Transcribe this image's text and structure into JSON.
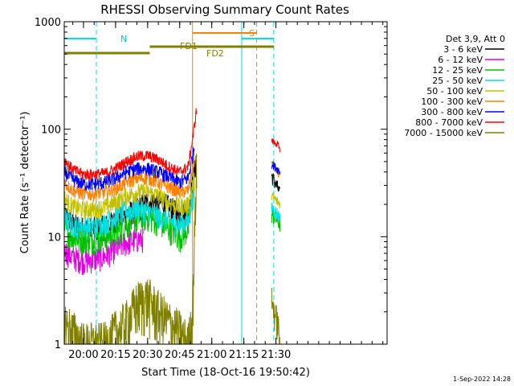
{
  "chart_data": {
    "type": "line",
    "title": "RHESSI Observing Summary Count Rates",
    "xlabel": "Start Time (18-Oct-16 19:50:42)",
    "ylabel": "Count Rate (s⁻¹ detector⁻¹)",
    "yscale": "log",
    "ylim": [
      1,
      1000
    ],
    "xlim_min": [
      -9,
      142
    ],
    "x_start": "19:50:42",
    "x_tick_labels": [
      "20:00",
      "20:15",
      "20:30",
      "20:45",
      "21:00",
      "21:15",
      "21:30"
    ],
    "x_tick_values": [
      0,
      15,
      30,
      45,
      60,
      75,
      90
    ],
    "y_tick_labels": [
      "1",
      "10",
      "100",
      "1000"
    ],
    "y_tick_values": [
      1,
      10,
      100,
      1000
    ],
    "legend_title": "Det 3,9, Att 0",
    "legend_position": "top-right",
    "series": [
      {
        "name": "3 - 6 keV",
        "color": "#000000",
        "points": [
          [
            -9,
            16
          ],
          [
            -5,
            13
          ],
          [
            0,
            12
          ],
          [
            5,
            12
          ],
          [
            10,
            12.5
          ],
          [
            15,
            14
          ],
          [
            20,
            16
          ],
          [
            25,
            18.5
          ],
          [
            30,
            21
          ],
          [
            35,
            21.5
          ],
          [
            40,
            19
          ],
          [
            45,
            16
          ],
          [
            49,
            18
          ],
          [
            52,
            40
          ],
          [
            53,
            60
          ]
        ],
        "post": [
          [
            88,
            37
          ],
          [
            91,
            28
          ],
          [
            92,
            24
          ]
        ]
      },
      {
        "name": "6 - 12 keV",
        "color": "#e000e0",
        "points": [
          [
            -9,
            7.5
          ],
          [
            -5,
            6.5
          ],
          [
            0,
            6
          ],
          [
            5,
            6.2
          ],
          [
            10,
            6.6
          ],
          [
            15,
            7.8
          ],
          [
            20,
            8.8
          ],
          [
            25,
            9.5
          ],
          [
            28,
            9.5
          ]
        ],
        "post": []
      },
      {
        "name": "12 - 25 keV",
        "color": "#00c000",
        "points": [
          [
            -9,
            12
          ],
          [
            -5,
            10
          ],
          [
            0,
            9.5
          ],
          [
            5,
            9.5
          ],
          [
            10,
            10
          ],
          [
            15,
            11
          ],
          [
            20,
            13
          ],
          [
            25,
            14.5
          ],
          [
            30,
            15.5
          ],
          [
            35,
            14
          ],
          [
            40,
            12
          ],
          [
            45,
            10
          ],
          [
            49,
            12
          ],
          [
            52,
            30
          ]
        ],
        "post": [
          [
            88,
            16
          ],
          [
            91,
            14
          ],
          [
            92,
            13
          ]
        ]
      },
      {
        "name": "25 - 50 keV",
        "color": "#00e0e0",
        "points": [
          [
            -9,
            15
          ],
          [
            -5,
            13
          ],
          [
            0,
            12.5
          ],
          [
            5,
            12.5
          ],
          [
            10,
            13.5
          ],
          [
            15,
            15.5
          ],
          [
            20,
            17.5
          ],
          [
            25,
            18.5
          ],
          [
            30,
            17.5
          ],
          [
            35,
            15.5
          ],
          [
            40,
            14
          ],
          [
            45,
            13
          ],
          [
            49,
            14
          ],
          [
            52,
            30
          ]
        ],
        "post": [
          [
            88,
            19
          ],
          [
            91,
            16
          ],
          [
            92,
            15
          ]
        ]
      },
      {
        "name": "50 - 100 keV",
        "color": "#c0c000",
        "points": [
          [
            -9,
            23
          ],
          [
            -5,
            19
          ],
          [
            0,
            18
          ],
          [
            5,
            18
          ],
          [
            10,
            19
          ],
          [
            15,
            21
          ],
          [
            20,
            24
          ],
          [
            25,
            26
          ],
          [
            30,
            26
          ],
          [
            35,
            24
          ],
          [
            40,
            21
          ],
          [
            45,
            19
          ],
          [
            49,
            20
          ],
          [
            52,
            35
          ]
        ],
        "post": [
          [
            88,
            24
          ],
          [
            91,
            21
          ],
          [
            92,
            20
          ]
        ]
      },
      {
        "name": "100 - 300 keV",
        "color": "#ff8000",
        "points": [
          [
            -9,
            32
          ],
          [
            -5,
            27
          ],
          [
            0,
            25
          ],
          [
            5,
            25
          ],
          [
            10,
            26
          ],
          [
            15,
            28
          ],
          [
            20,
            32
          ],
          [
            25,
            35
          ],
          [
            30,
            35
          ],
          [
            35,
            32
          ],
          [
            40,
            29
          ],
          [
            45,
            26
          ],
          [
            49,
            27
          ],
          [
            52,
            55
          ]
        ],
        "post": [
          [
            88,
            48
          ],
          [
            91,
            39
          ],
          [
            92,
            37
          ]
        ]
      },
      {
        "name": "300 - 800 keV",
        "color": "#0000ff",
        "points": [
          [
            -9,
            40
          ],
          [
            -5,
            34
          ],
          [
            0,
            31
          ],
          [
            5,
            31
          ],
          [
            10,
            32
          ],
          [
            15,
            35
          ],
          [
            20,
            40
          ],
          [
            25,
            43
          ],
          [
            30,
            43
          ],
          [
            35,
            40
          ],
          [
            40,
            36
          ],
          [
            45,
            32
          ],
          [
            49,
            35
          ],
          [
            52,
            70
          ]
        ],
        "post": [
          [
            88,
            48
          ],
          [
            91,
            42
          ],
          [
            92,
            40
          ]
        ]
      },
      {
        "name": "800 - 7000 keV",
        "color": "#ff0000",
        "points": [
          [
            -9,
            52
          ],
          [
            -5,
            42
          ],
          [
            0,
            38
          ],
          [
            5,
            38
          ],
          [
            10,
            39
          ],
          [
            15,
            43
          ],
          [
            20,
            50
          ],
          [
            25,
            56
          ],
          [
            30,
            57
          ],
          [
            35,
            52
          ],
          [
            40,
            45
          ],
          [
            45,
            40
          ],
          [
            49,
            45
          ],
          [
            51,
            80
          ],
          [
            53,
            160
          ]
        ],
        "post": [
          [
            88,
            78
          ],
          [
            91,
            72
          ],
          [
            92,
            60
          ]
        ]
      },
      {
        "name": "7000 - 15000 keV",
        "color": "#808000",
        "points": [
          [
            -9,
            1.6
          ],
          [
            -5,
            1.3
          ],
          [
            0,
            1
          ],
          [
            10,
            1
          ],
          [
            15,
            1.3
          ],
          [
            20,
            1.6
          ],
          [
            25,
            2.4
          ],
          [
            30,
            2.7
          ],
          [
            35,
            2
          ],
          [
            40,
            1.6
          ],
          [
            45,
            1.3
          ],
          [
            49,
            1
          ],
          [
            51,
            2
          ],
          [
            53,
            60
          ]
        ],
        "post": [
          [
            88,
            2.5
          ],
          [
            91,
            1.5
          ],
          [
            92,
            1
          ]
        ]
      }
    ],
    "annotations": {
      "n_label": "N",
      "s_label": "S",
      "fd1_label": "FD1",
      "fd2_label": "FD2",
      "n_intervals": [
        [
          -9,
          6
        ],
        [
          74,
          89
        ]
      ],
      "s_interval": [
        51,
        81
      ],
      "fd1_interval": [
        31,
        89
      ],
      "fd2_interval": [
        -9,
        31
      ],
      "vertical_lines": [
        {
          "x": -9,
          "color": "#00e0e0",
          "dashed": false
        },
        {
          "x": 6,
          "color": "#00e0e0",
          "dashed": true
        },
        {
          "x": 51,
          "color": "#ff8000",
          "dashed": false
        },
        {
          "x": 74,
          "color": "#00e0e0",
          "dashed": false
        },
        {
          "x": 81,
          "color": "#ff8000",
          "dashed": true
        },
        {
          "x": 89,
          "color": "#00e0e0",
          "dashed": true
        }
      ]
    },
    "footer_date": "1-Sep-2022 14:28"
  }
}
